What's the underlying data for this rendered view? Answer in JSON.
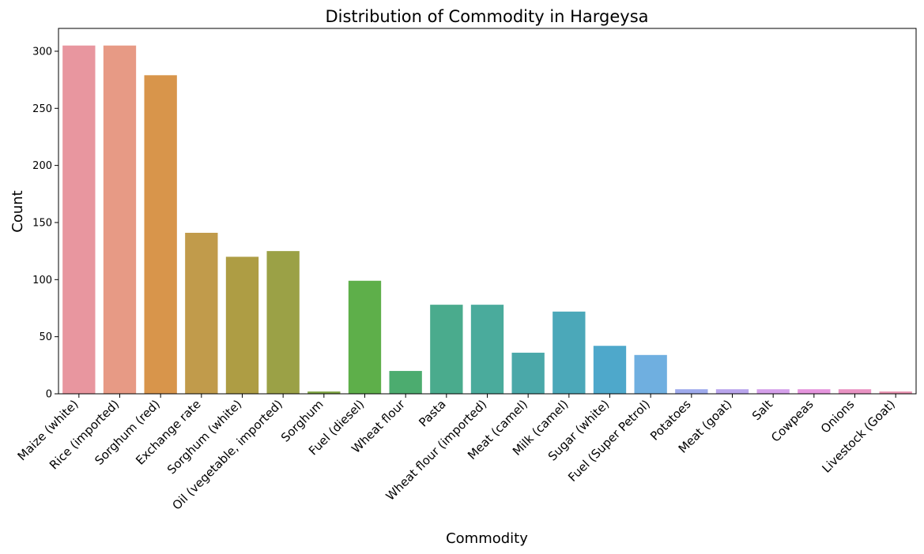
{
  "chart_data": {
    "type": "bar",
    "title": "Distribution of Commodity in Hargeysa",
    "xlabel": "Commodity",
    "ylabel": "Count",
    "ylim": [
      0,
      320
    ],
    "yticks": [
      0,
      50,
      100,
      150,
      200,
      250,
      300
    ],
    "grid": false,
    "legend": "none",
    "categories": [
      "Maize (white)",
      "Rice (imported)",
      "Sorghum (red)",
      "Exchange rate",
      "Sorghum (white)",
      "Oil (vegetable, imported)",
      "Sorghum",
      "Fuel (diesel)",
      "Wheat flour",
      "Pasta",
      "Wheat flour (imported)",
      "Meat (camel)",
      "Milk (camel)",
      "Sugar (white)",
      "Fuel (Super Petrol)",
      "Potatoes",
      "Meat (goat)",
      "Salt",
      "Cowpeas",
      "Onions",
      "Livestock (Goat)"
    ],
    "values": [
      305,
      305,
      279,
      141,
      120,
      125,
      2,
      99,
      20,
      78,
      78,
      36,
      72,
      42,
      34,
      4,
      4,
      4,
      4,
      4,
      2
    ],
    "colors": [
      "#e8969f",
      "#e79a85",
      "#d8954b",
      "#c19b4b",
      "#ae9d44",
      "#9ba146",
      "#7fa543",
      "#5eaf4a",
      "#4cac6f",
      "#4aab8d",
      "#4aab9c",
      "#4aa8a9",
      "#4ba8b9",
      "#4ea8cb",
      "#6fafe0",
      "#9eaaec",
      "#b9a5ec",
      "#d5a0ea",
      "#e595dd",
      "#e993c3",
      "#ea93b1"
    ]
  }
}
